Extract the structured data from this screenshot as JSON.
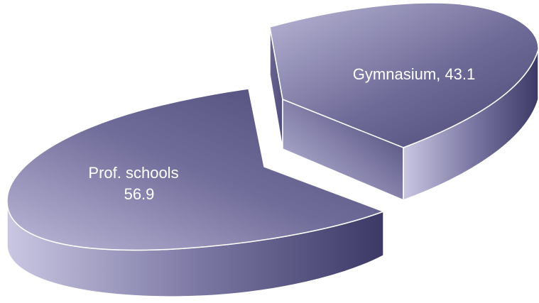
{
  "chart_data": {
    "type": "pie",
    "title": "",
    "style": "3d-exploded",
    "slices": [
      {
        "label": "Gymnasium",
        "value": 43.1,
        "display": "Gymnasium, 43.1"
      },
      {
        "label": "Prof. schools",
        "value": 56.9,
        "display_line1": "Prof. schools",
        "display_line2": "56.9"
      }
    ],
    "legend": "none",
    "colors": {
      "top_light": "#b9b6d6",
      "top_dark": "#4a4673",
      "side_light": "#c9c7e2",
      "side_dark": "#3d3966",
      "edge": "#ffffff"
    }
  }
}
